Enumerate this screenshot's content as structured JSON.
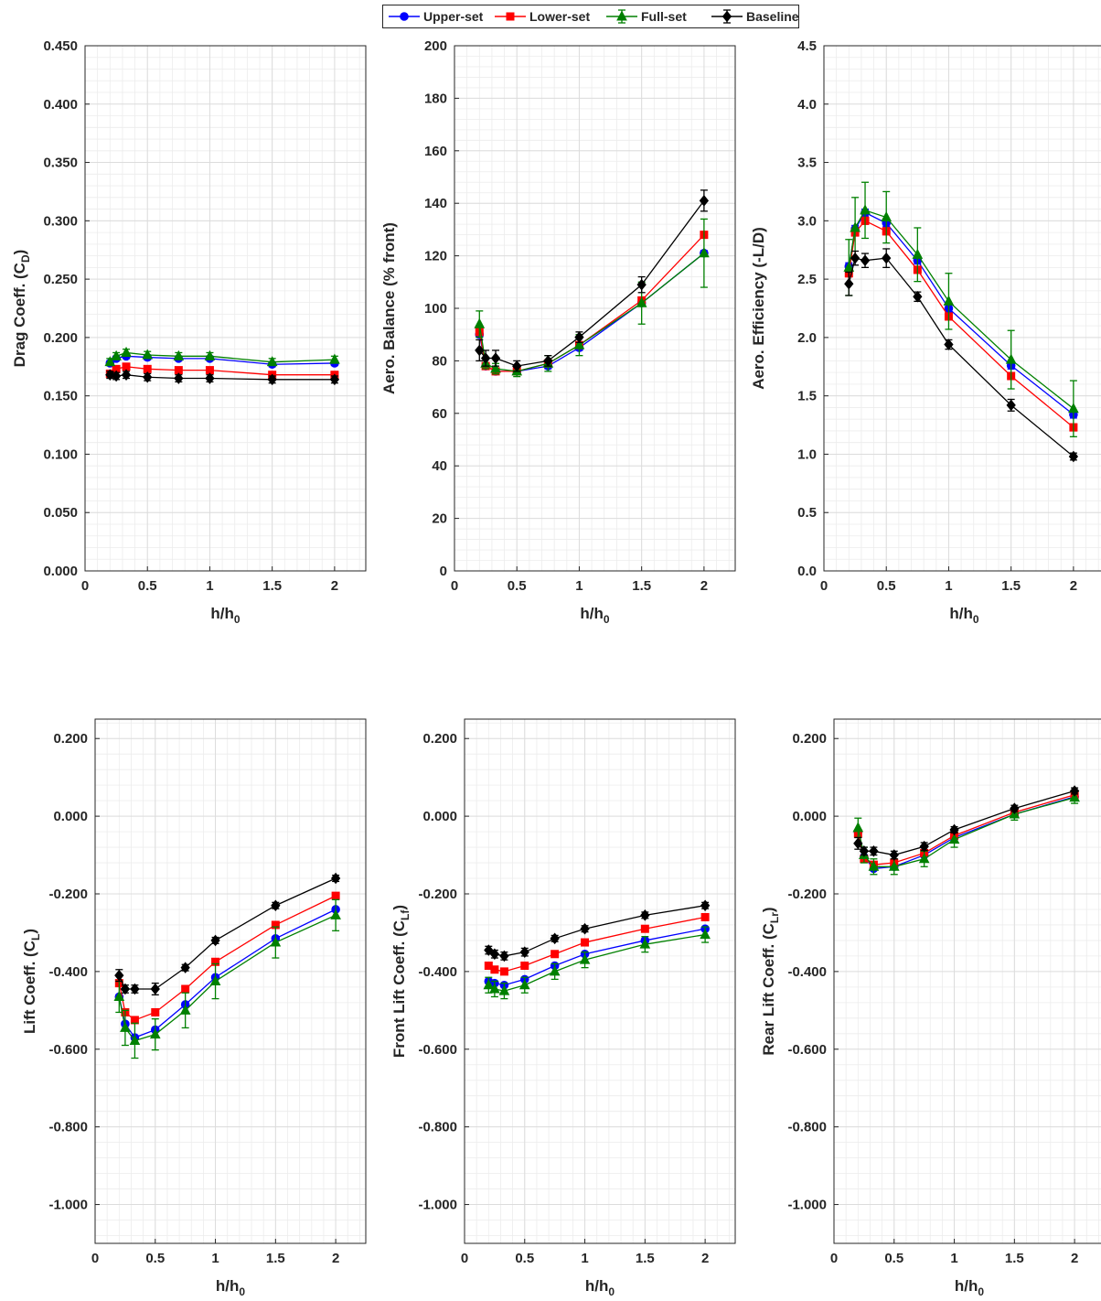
{
  "colors": {
    "upper": "#0000ff",
    "lower": "#ff0000",
    "full": "#008000",
    "baseline": "#000000"
  },
  "legend": [
    {
      "name": "Upper-set",
      "color": "#0000ff",
      "marker": "circle"
    },
    {
      "name": "Lower-set",
      "color": "#ff0000",
      "marker": "square"
    },
    {
      "name": "Full-set",
      "color": "#008000",
      "marker": "triangle"
    },
    {
      "name": "Baseline",
      "color": "#000000",
      "marker": "diamond"
    }
  ],
  "chart_data": [
    {
      "type": "line",
      "ylabel": "Drag Coeff. (C",
      "ylabel_sub": "D",
      "xlabel": "h/h",
      "xlabel_sub": "0",
      "xlim": [
        0,
        2.25
      ],
      "ylim": [
        0,
        0.45
      ],
      "xticks": [
        "0",
        "0.5",
        "1",
        "1.5",
        "2"
      ],
      "yticks": [
        "0.000",
        "0.050",
        "0.100",
        "0.150",
        "0.200",
        "0.250",
        "0.300",
        "0.350",
        "0.400",
        "0.450"
      ],
      "grid": true,
      "x": [
        0.2,
        0.25,
        0.33,
        0.5,
        0.75,
        1.0,
        1.5,
        2.0
      ],
      "series": [
        {
          "name": "Upper-set",
          "values": [
            0.178,
            0.182,
            0.184,
            0.183,
            0.182,
            0.182,
            0.177,
            0.178
          ],
          "err": [
            0.002,
            0.002,
            0.002,
            0.002,
            0.002,
            0.002,
            0.002,
            0.002
          ]
        },
        {
          "name": "Lower-set",
          "values": [
            0.169,
            0.173,
            0.175,
            0.173,
            0.172,
            0.172,
            0.168,
            0.168
          ],
          "err": [
            0.002,
            0.002,
            0.002,
            0.002,
            0.002,
            0.002,
            0.002,
            0.002
          ]
        },
        {
          "name": "Full-set",
          "values": [
            0.179,
            0.184,
            0.187,
            0.185,
            0.184,
            0.184,
            0.179,
            0.181
          ],
          "err": [
            0.003,
            0.003,
            0.003,
            0.003,
            0.003,
            0.003,
            0.003,
            0.003
          ]
        },
        {
          "name": "Baseline",
          "values": [
            0.168,
            0.167,
            0.168,
            0.166,
            0.165,
            0.165,
            0.164,
            0.164
          ],
          "err": [
            0.003,
            0.003,
            0.003,
            0.003,
            0.003,
            0.003,
            0.003,
            0.003
          ]
        }
      ]
    },
    {
      "type": "line",
      "ylabel": "Aero. Balance (% front)",
      "ylabel_sub": "",
      "xlabel": "h/h",
      "xlabel_sub": "0",
      "xlim": [
        0,
        2.25
      ],
      "ylim": [
        0,
        200
      ],
      "xticks": [
        "0",
        "0.5",
        "1",
        "1.5",
        "2"
      ],
      "yticks": [
        "0",
        "20",
        "40",
        "60",
        "80",
        "100",
        "120",
        "140",
        "160",
        "180",
        "200"
      ],
      "grid": true,
      "x": [
        0.2,
        0.25,
        0.33,
        0.5,
        0.75,
        1.0,
        1.5,
        2.0
      ],
      "series": [
        {
          "name": "Upper-set",
          "values": [
            90,
            78,
            76,
            76,
            78,
            85,
            102,
            121
          ],
          "err": [
            1,
            1,
            1,
            1,
            1,
            1,
            1,
            1
          ]
        },
        {
          "name": "Lower-set",
          "values": [
            91,
            78,
            76,
            76,
            79,
            86,
            103,
            128
          ],
          "err": [
            1,
            1,
            1,
            1,
            1,
            1,
            1,
            1
          ]
        },
        {
          "name": "Full-set",
          "values": [
            94,
            79,
            77,
            76,
            79,
            86,
            102,
            121
          ],
          "err": [
            5,
            2,
            2,
            2,
            3,
            4,
            8,
            13
          ]
        },
        {
          "name": "Baseline",
          "values": [
            84,
            81,
            81,
            78,
            80,
            89,
            109,
            141
          ],
          "err": [
            4,
            3,
            3,
            2,
            2,
            2,
            3,
            4
          ]
        }
      ]
    },
    {
      "type": "line",
      "ylabel": "Aero. Efficiency (-L/D)",
      "ylabel_sub": "",
      "xlabel": "h/h",
      "xlabel_sub": "0",
      "xlim": [
        0,
        2.25
      ],
      "ylim": [
        0,
        4.5
      ],
      "xticks": [
        "0",
        "0.5",
        "1",
        "1.5",
        "2"
      ],
      "yticks": [
        "0.0",
        "0.5",
        "1.0",
        "1.5",
        "2.0",
        "2.5",
        "3.0",
        "3.5",
        "4.0",
        "4.5"
      ],
      "grid": true,
      "x": [
        0.2,
        0.25,
        0.33,
        0.5,
        0.75,
        1.0,
        1.5,
        2.0
      ],
      "series": [
        {
          "name": "Upper-set",
          "values": [
            2.61,
            2.93,
            3.07,
            2.98,
            2.66,
            2.25,
            1.76,
            1.34
          ],
          "err": [
            0.03,
            0.03,
            0.03,
            0.03,
            0.03,
            0.03,
            0.03,
            0.03
          ]
        },
        {
          "name": "Lower-set",
          "values": [
            2.55,
            2.9,
            3.0,
            2.91,
            2.58,
            2.18,
            1.67,
            1.23
          ],
          "err": [
            0.03,
            0.03,
            0.03,
            0.03,
            0.03,
            0.03,
            0.03,
            0.03
          ]
        },
        {
          "name": "Full-set",
          "values": [
            2.6,
            2.94,
            3.09,
            3.03,
            2.71,
            2.31,
            1.81,
            1.39
          ],
          "err": [
            0.24,
            0.26,
            0.24,
            0.22,
            0.23,
            0.24,
            0.25,
            0.24
          ]
        },
        {
          "name": "Baseline",
          "values": [
            2.46,
            2.68,
            2.66,
            2.68,
            2.35,
            1.94,
            1.42,
            0.98
          ],
          "err": [
            0.1,
            0.06,
            0.06,
            0.08,
            0.04,
            0.04,
            0.05,
            0.03
          ]
        }
      ]
    },
    {
      "type": "line",
      "ylabel": "Lift Coeff. (C",
      "ylabel_sub": "L",
      "xlabel": "h/h",
      "xlabel_sub": "0",
      "xlim": [
        0,
        2.25
      ],
      "ylim": [
        -1.1,
        0.25
      ],
      "xticks": [
        "0",
        "0.5",
        "1",
        "1.5",
        "2"
      ],
      "yticks": [
        "-1.000",
        "-0.800",
        "-0.600",
        "-0.400",
        "-0.200",
        "0.000",
        "0.200"
      ],
      "grid": true,
      "x": [
        0.2,
        0.25,
        0.33,
        0.5,
        0.75,
        1.0,
        1.5,
        2.0
      ],
      "series": [
        {
          "name": "Upper-set",
          "values": [
            -0.465,
            -0.535,
            -0.57,
            -0.55,
            -0.485,
            -0.415,
            -0.315,
            -0.24
          ],
          "err": [
            0.005,
            0.005,
            0.005,
            0.005,
            0.005,
            0.005,
            0.005,
            0.005
          ]
        },
        {
          "name": "Lower-set",
          "values": [
            -0.43,
            -0.505,
            -0.525,
            -0.505,
            -0.445,
            -0.375,
            -0.28,
            -0.205
          ],
          "err": [
            0.005,
            0.005,
            0.005,
            0.005,
            0.005,
            0.005,
            0.005,
            0.005
          ]
        },
        {
          "name": "Full-set",
          "values": [
            -0.465,
            -0.545,
            -0.578,
            -0.562,
            -0.5,
            -0.425,
            -0.325,
            -0.255
          ],
          "err": [
            0.04,
            0.045,
            0.045,
            0.04,
            0.045,
            0.045,
            0.04,
            0.04
          ]
        },
        {
          "name": "Baseline",
          "values": [
            -0.41,
            -0.445,
            -0.445,
            -0.445,
            -0.39,
            -0.32,
            -0.23,
            -0.16
          ],
          "err": [
            0.015,
            0.01,
            0.01,
            0.015,
            0.008,
            0.008,
            0.008,
            0.008
          ]
        }
      ]
    },
    {
      "type": "line",
      "ylabel": "Front Lift Coeff. (C",
      "ylabel_sub": "Lf",
      "xlabel": "h/h",
      "xlabel_sub": "0",
      "xlim": [
        0,
        2.25
      ],
      "ylim": [
        -1.1,
        0.25
      ],
      "xticks": [
        "0",
        "0.5",
        "1",
        "1.5",
        "2"
      ],
      "yticks": [
        "-1.000",
        "-0.800",
        "-0.600",
        "-0.400",
        "-0.200",
        "0.000",
        "0.200"
      ],
      "grid": true,
      "x": [
        0.2,
        0.25,
        0.33,
        0.5,
        0.75,
        1.0,
        1.5,
        2.0
      ],
      "series": [
        {
          "name": "Upper-set",
          "values": [
            -0.425,
            -0.43,
            -0.435,
            -0.42,
            -0.385,
            -0.355,
            -0.32,
            -0.29
          ],
          "err": [
            0.005,
            0.005,
            0.005,
            0.005,
            0.005,
            0.005,
            0.005,
            0.005
          ]
        },
        {
          "name": "Lower-set",
          "values": [
            -0.385,
            -0.395,
            -0.4,
            -0.385,
            -0.355,
            -0.325,
            -0.29,
            -0.26
          ],
          "err": [
            0.005,
            0.005,
            0.005,
            0.005,
            0.005,
            0.005,
            0.005,
            0.005
          ]
        },
        {
          "name": "Full-set",
          "values": [
            -0.435,
            -0.445,
            -0.45,
            -0.435,
            -0.4,
            -0.37,
            -0.33,
            -0.305
          ],
          "err": [
            0.02,
            0.02,
            0.02,
            0.02,
            0.02,
            0.02,
            0.02,
            0.02
          ]
        },
        {
          "name": "Baseline",
          "values": [
            -0.345,
            -0.355,
            -0.36,
            -0.35,
            -0.315,
            -0.29,
            -0.255,
            -0.23
          ],
          "err": [
            0.01,
            0.01,
            0.01,
            0.01,
            0.008,
            0.008,
            0.008,
            0.008
          ]
        }
      ]
    },
    {
      "type": "line",
      "ylabel": "Rear Lift Coeff. (C",
      "ylabel_sub": "Lr",
      "xlabel": "h/h",
      "xlabel_sub": "0",
      "xlim": [
        0,
        2.25
      ],
      "ylim": [
        -1.1,
        0.25
      ],
      "xticks": [
        "0",
        "0.5",
        "1",
        "1.5",
        "2"
      ],
      "yticks": [
        "-1.000",
        "-0.800",
        "-0.600",
        "-0.400",
        "-0.200",
        "0.000",
        "0.200"
      ],
      "grid": true,
      "x": [
        0.2,
        0.25,
        0.33,
        0.5,
        0.75,
        1.0,
        1.5,
        2.0
      ],
      "series": [
        {
          "name": "Upper-set",
          "values": [
            -0.04,
            -0.105,
            -0.135,
            -0.13,
            -0.1,
            -0.055,
            0.005,
            0.05
          ],
          "err": [
            0.005,
            0.005,
            0.005,
            0.005,
            0.005,
            0.005,
            0.005,
            0.005
          ]
        },
        {
          "name": "Lower-set",
          "values": [
            -0.045,
            -0.11,
            -0.125,
            -0.12,
            -0.095,
            -0.05,
            0.01,
            0.055
          ],
          "err": [
            0.005,
            0.005,
            0.005,
            0.005,
            0.005,
            0.005,
            0.005,
            0.005
          ]
        },
        {
          "name": "Full-set",
          "values": [
            -0.03,
            -0.1,
            -0.13,
            -0.13,
            -0.11,
            -0.06,
            0.005,
            0.048
          ],
          "err": [
            0.025,
            0.02,
            0.02,
            0.02,
            0.02,
            0.02,
            0.015,
            0.015
          ]
        },
        {
          "name": "Baseline",
          "values": [
            -0.07,
            -0.09,
            -0.09,
            -0.1,
            -0.078,
            -0.035,
            0.02,
            0.065
          ],
          "err": [
            0.015,
            0.01,
            0.01,
            0.01,
            0.01,
            0.008,
            0.008,
            0.008
          ]
        }
      ]
    }
  ]
}
